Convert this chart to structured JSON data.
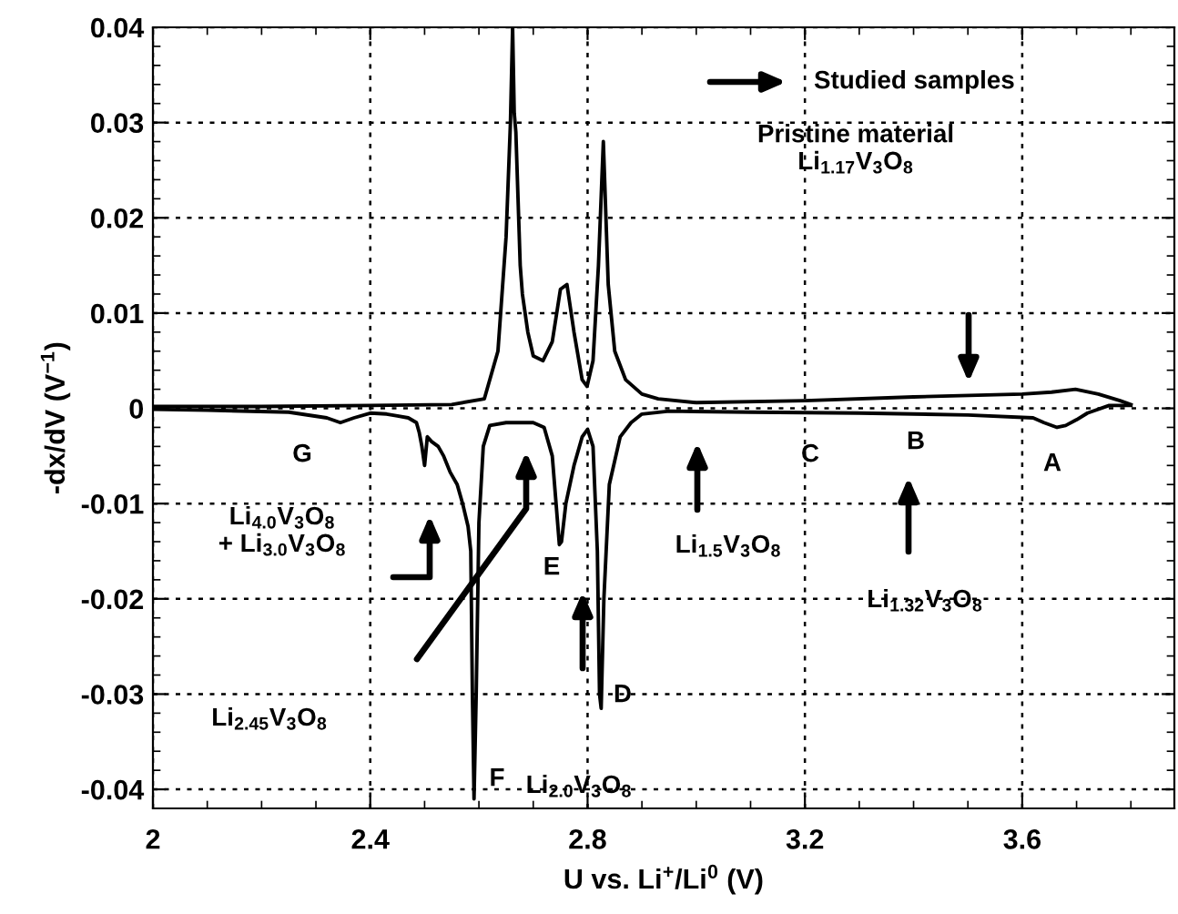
{
  "chart_data": {
    "type": "line",
    "xlabel": "U vs. Li$^{+}$/Li$^{0}$ (V)",
    "ylabel": "-dx/dV (V$^{−1}$)",
    "xlim": [
      2,
      3.88
    ],
    "xticks": [
      2,
      2.4,
      2.8,
      3.2,
      3.6
    ],
    "ylim": [
      -0.042,
      0.04
    ],
    "yticks": [
      -0.04,
      -0.03,
      -0.02,
      -0.01,
      0,
      0.01,
      0.02,
      0.03,
      0.04
    ],
    "grid": true,
    "series": [
      {
        "color": "#000000",
        "x": [
          2.0,
          2.2,
          2.4,
          2.55,
          2.61,
          2.635,
          2.65,
          2.658,
          2.662,
          2.665,
          2.668,
          2.672,
          2.676,
          2.68,
          2.69,
          2.7,
          2.718,
          2.735,
          2.75,
          2.762,
          2.775,
          2.79,
          2.799,
          2.81,
          2.82,
          2.829,
          2.838,
          2.85,
          2.87,
          2.9,
          2.93,
          3.0,
          3.2,
          3.4,
          3.6,
          3.654,
          3.698,
          3.74,
          3.78,
          3.8
        ],
        "values": [
          0.0002,
          0.0002,
          0.0003,
          0.0004,
          0.001,
          0.006,
          0.018,
          0.03,
          0.04,
          0.031,
          0.029,
          0.022,
          0.015,
          0.012,
          0.008,
          0.0055,
          0.005,
          0.007,
          0.0125,
          0.013,
          0.008,
          0.003,
          0.0023,
          0.005,
          0.015,
          0.028,
          0.013,
          0.006,
          0.003,
          0.0015,
          0.001,
          0.0006,
          0.0008,
          0.0012,
          0.0015,
          0.0017,
          0.002,
          0.0015,
          0.0008,
          0.0004
        ]
      },
      {
        "color": "#000000",
        "x": [
          3.8,
          3.76,
          3.72,
          3.7,
          3.68,
          3.664,
          3.64,
          3.62,
          3.5,
          3.3,
          3.1,
          2.95,
          2.9,
          2.88,
          2.86,
          2.84,
          2.83,
          2.825,
          2.822,
          2.818,
          2.81,
          2.8,
          2.79,
          2.775,
          2.76,
          2.752,
          2.748,
          2.742,
          2.735,
          2.72,
          2.7,
          2.65,
          2.62,
          2.608,
          2.6,
          2.595,
          2.591,
          2.588,
          2.585,
          2.58,
          2.57,
          2.56,
          2.547,
          2.535,
          2.525,
          2.513,
          2.505,
          2.5,
          2.495,
          2.49,
          2.485,
          2.47,
          2.45,
          2.43,
          2.4,
          2.37,
          2.345,
          2.32,
          2.25,
          2.1,
          2.0
        ],
        "values": [
          0.0003,
          0.0003,
          -0.0005,
          -0.0012,
          -0.0018,
          -0.002,
          -0.0015,
          -0.001,
          -0.0007,
          -0.0005,
          -0.0004,
          -0.0003,
          -0.0006,
          -0.0015,
          -0.003,
          -0.008,
          -0.02,
          -0.0315,
          -0.03,
          -0.015,
          -0.004,
          -0.0022,
          -0.003,
          -0.006,
          -0.01,
          -0.014,
          -0.0143,
          -0.01,
          -0.005,
          -0.002,
          -0.0015,
          -0.0015,
          -0.0018,
          -0.004,
          -0.012,
          -0.03,
          -0.041,
          -0.03,
          -0.015,
          -0.0124,
          -0.01,
          -0.008,
          -0.0067,
          -0.005,
          -0.004,
          -0.0035,
          -0.003,
          -0.006,
          -0.004,
          -0.0025,
          -0.0015,
          -0.001,
          -0.0008,
          -0.0006,
          -0.0005,
          -0.001,
          -0.0015,
          -0.001,
          -0.0004,
          -0.0002,
          -0.0001
        ]
      }
    ],
    "annotations": [
      "Studied samples",
      "Pristine material\nLi$_{1.17}$V$_{3}$O$_{8}$",
      "A",
      "B",
      "C",
      "D",
      "E",
      "F",
      "G",
      "Li$_{1.32}$V$_{3}$O$_{8}$",
      "Li$_{1.5}$V$_{3}$O$_{8}$",
      "Li$_{2.0}$V$_{3}$O$_{8}$",
      "Li$_{2.45}$V$_{3}$O$_{8}$",
      "Li$_{4.0}$V$_{3}$O$_{8}$\n+ Li$_{3.0}$V$_{3}$O$_{8}$"
    ]
  }
}
